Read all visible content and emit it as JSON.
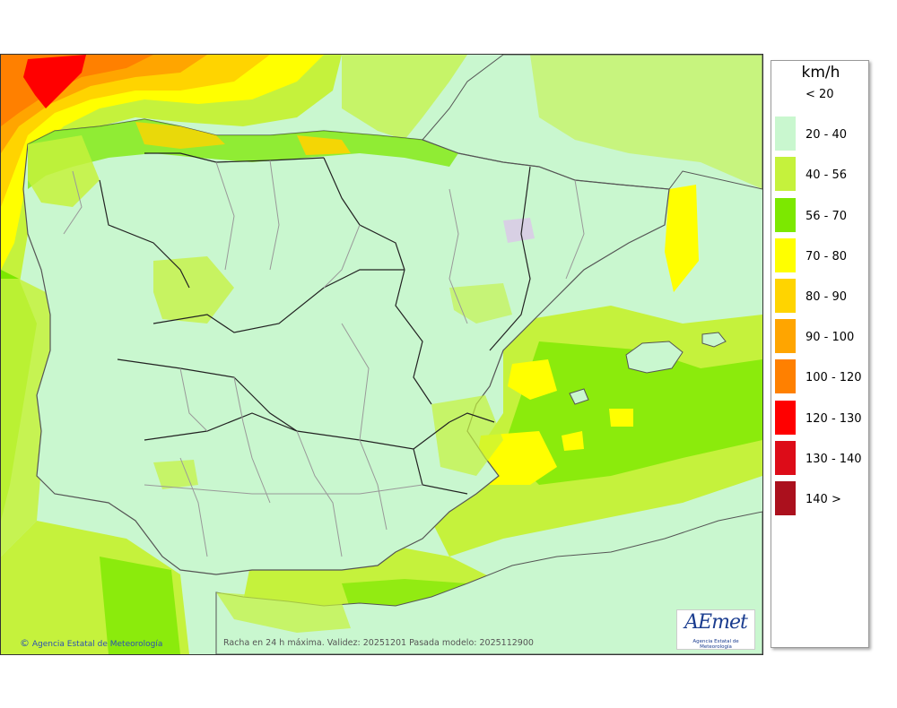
{
  "legend": {
    "unit": "km/h",
    "items": [
      {
        "label": "< 20",
        "color": "#ffffff"
      },
      {
        "label": "20 - 40",
        "color": "#c9f7cf"
      },
      {
        "label": "40 - 56",
        "color": "#c5f23c"
      },
      {
        "label": "56 - 70",
        "color": "#7ce800"
      },
      {
        "label": "70 - 80",
        "color": "#ffff00"
      },
      {
        "label": "80 - 90",
        "color": "#ffd400"
      },
      {
        "label": "90 - 100",
        "color": "#ffa500"
      },
      {
        "label": "100 - 120",
        "color": "#ff8000"
      },
      {
        "label": "120 - 130",
        "color": "#ff0000"
      },
      {
        "label": "130 - 140",
        "color": "#dd0c18"
      },
      {
        "label": "140 >",
        "color": "#ab101d"
      }
    ]
  },
  "map": {
    "credit": "Agencia Estatal de Meteorología",
    "credit_icon": "copyright-icon",
    "caption": "Racha en 24 h máxima. Validez: 20251201 Pasada modelo: 2025112900",
    "logo_text": "AEmet",
    "logo_subtext": "Agencia Estatal de Meteorología"
  }
}
